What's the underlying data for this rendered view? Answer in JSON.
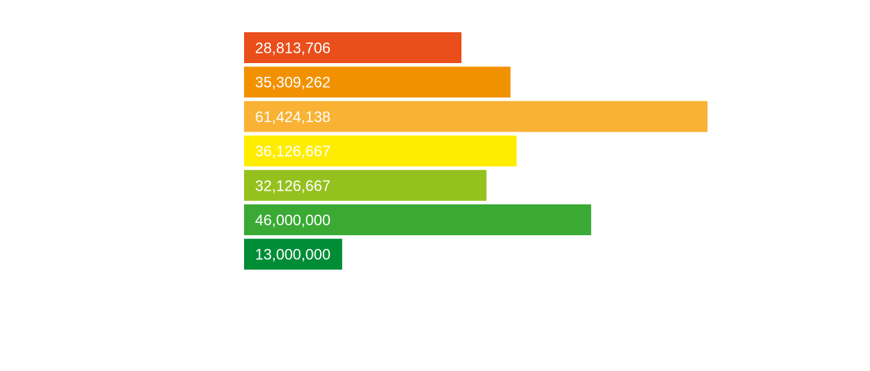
{
  "chart_data": {
    "type": "bar",
    "orientation": "horizontal",
    "title": "",
    "xlabel": "",
    "ylabel": "",
    "grid": false,
    "legend": "none",
    "values": [
      28813706,
      35309262,
      61424138,
      36126667,
      32126667,
      46000000,
      13000000
    ],
    "labels": [
      "28,813,706",
      "35,309,262",
      "61,424,138",
      "36,126,667",
      "32,126,667",
      "46,000,000",
      "13,000,000"
    ],
    "colors": [
      "#e94e1b",
      "#f29100",
      "#f9b233",
      "#ffed00",
      "#95c11f",
      "#3aaa35",
      "#008d36"
    ]
  }
}
